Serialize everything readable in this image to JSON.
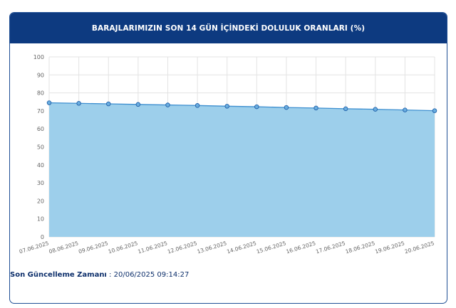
{
  "header": {
    "title": "BARAJLARIMIZIN SON 14 GÜN İÇİNDEKİ DOLULUK ORANLARI (%)"
  },
  "footer": {
    "label": "Son Güncelleme Zamanı",
    "separator": " : ",
    "value": "20/06/2025 09:14:27"
  },
  "colors": {
    "header_bg": "#0d3a80",
    "area_fill": "#9dcfeb",
    "line": "#3d8fd0",
    "marker": "#6aaee0",
    "marker_stroke": "#1f5fa8"
  },
  "chart_data": {
    "type": "area",
    "title": "BARAJLARIMIZIN SON 14 GÜN İÇİNDEKİ DOLULUK ORANLARI (%)",
    "xlabel": "",
    "ylabel": "",
    "ylim": [
      0,
      100
    ],
    "yticks": [
      0,
      10,
      20,
      30,
      40,
      50,
      60,
      70,
      80,
      90,
      100
    ],
    "grid": true,
    "categories": [
      "07.06.2025",
      "08.06.2025",
      "09.06.2025",
      "10.06.2025",
      "11.06.2025",
      "12.06.2025",
      "13.06.2025",
      "14.06.2025",
      "15.06.2025",
      "16.06.2025",
      "17.06.2025",
      "18.06.2025",
      "19.06.2025",
      "20.06.2025"
    ],
    "values": [
      74.5,
      74.2,
      73.9,
      73.6,
      73.3,
      73.0,
      72.6,
      72.3,
      71.9,
      71.6,
      71.2,
      70.9,
      70.5,
      70.1
    ]
  }
}
